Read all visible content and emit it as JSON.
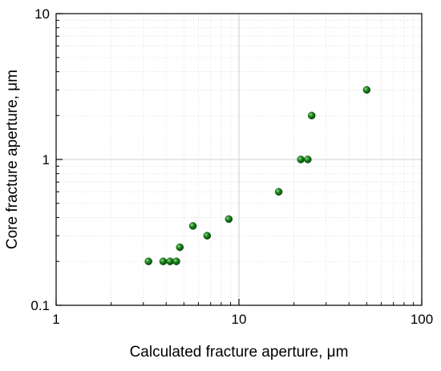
{
  "chart_data": {
    "type": "scatter",
    "xscale": "log",
    "yscale": "log",
    "xlim": [
      1,
      100
    ],
    "ylim": [
      0.1,
      10
    ],
    "xlabel": "Calculated fracture aperture, μm",
    "ylabel": "Core fracture aperture, μm",
    "xticks": [
      1,
      10,
      100
    ],
    "yticks": [
      0.1,
      1,
      10
    ],
    "xtick_labels": [
      "1",
      "10",
      "100"
    ],
    "ytick_labels": [
      "0.1",
      "1",
      "10"
    ],
    "grid": "major solid, minor dotted",
    "marker_color": "#1e8a1e",
    "points": [
      {
        "x": 3.2,
        "y": 0.2
      },
      {
        "x": 3.85,
        "y": 0.2
      },
      {
        "x": 4.2,
        "y": 0.2
      },
      {
        "x": 4.55,
        "y": 0.2
      },
      {
        "x": 4.75,
        "y": 0.25
      },
      {
        "x": 5.6,
        "y": 0.35
      },
      {
        "x": 6.7,
        "y": 0.3
      },
      {
        "x": 8.8,
        "y": 0.39
      },
      {
        "x": 16.5,
        "y": 0.6
      },
      {
        "x": 21.8,
        "y": 1.0
      },
      {
        "x": 23.8,
        "y": 1.0
      },
      {
        "x": 25.0,
        "y": 2.0
      },
      {
        "x": 50.0,
        "y": 3.0
      }
    ]
  }
}
